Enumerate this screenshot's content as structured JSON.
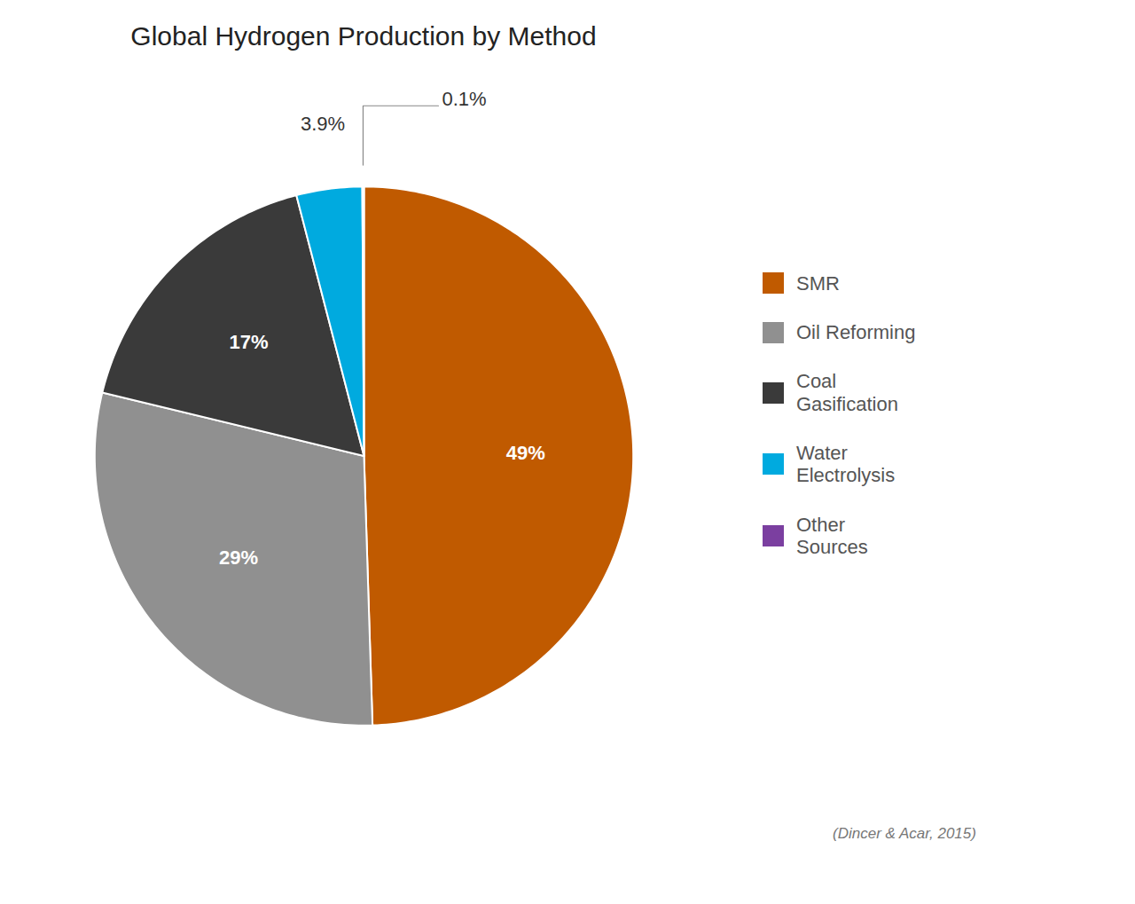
{
  "chart_data": {
    "type": "pie",
    "title": "Global Hydrogen Production by Method",
    "categories": [
      "SMR",
      "Oil Reforming",
      "Coal\nGasification",
      "Water\nElectrolysis",
      "Other\nSources"
    ],
    "values": [
      49,
      29,
      17,
      3.9,
      0.1
    ],
    "value_labels": [
      "49%",
      "29%",
      "17%",
      "3.9%",
      "0.1%"
    ],
    "colors": [
      "#C05A00",
      "#909090",
      "#3A3A3A",
      "#00AADF",
      "#7B3FA0"
    ],
    "data_labels": true,
    "legend": "right",
    "source": "(Dincer & Acar, 2015)"
  }
}
